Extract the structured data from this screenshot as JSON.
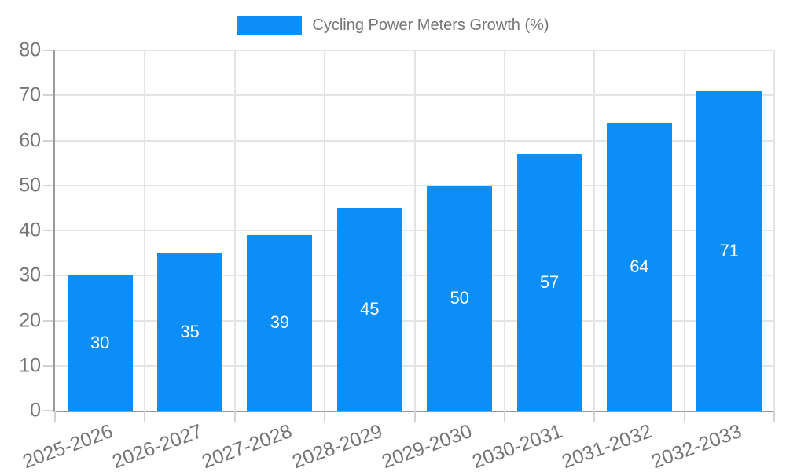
{
  "chart_data": {
    "type": "bar",
    "title": "Cycling Power Meters Growth (%)",
    "categories": [
      "2025-2026",
      "2026-2027",
      "2027-2028",
      "2028-2029",
      "2029-2030",
      "2030-2031",
      "2031-2032",
      "2032-2033"
    ],
    "values": [
      30,
      35,
      39,
      45,
      50,
      57,
      64,
      71
    ],
    "xlabel": "",
    "ylabel": "",
    "ylim": [
      0,
      80
    ],
    "ytick_step": 10,
    "ytick_labels": [
      "0",
      "10",
      "20",
      "30",
      "40",
      "50",
      "60",
      "70",
      "80"
    ],
    "grid": "on",
    "legend_position": "top-center",
    "value_labels": "inside-center",
    "x_label_rotation_deg": -20,
    "colors": {
      "bar": "#0b8ef8",
      "value_label": "#ffffff",
      "axis": "#9a9a9a",
      "gridline": "#e4e4e4",
      "tick": "#d2d2d2",
      "tick_text": "#757575",
      "background": "#ffffff"
    }
  }
}
